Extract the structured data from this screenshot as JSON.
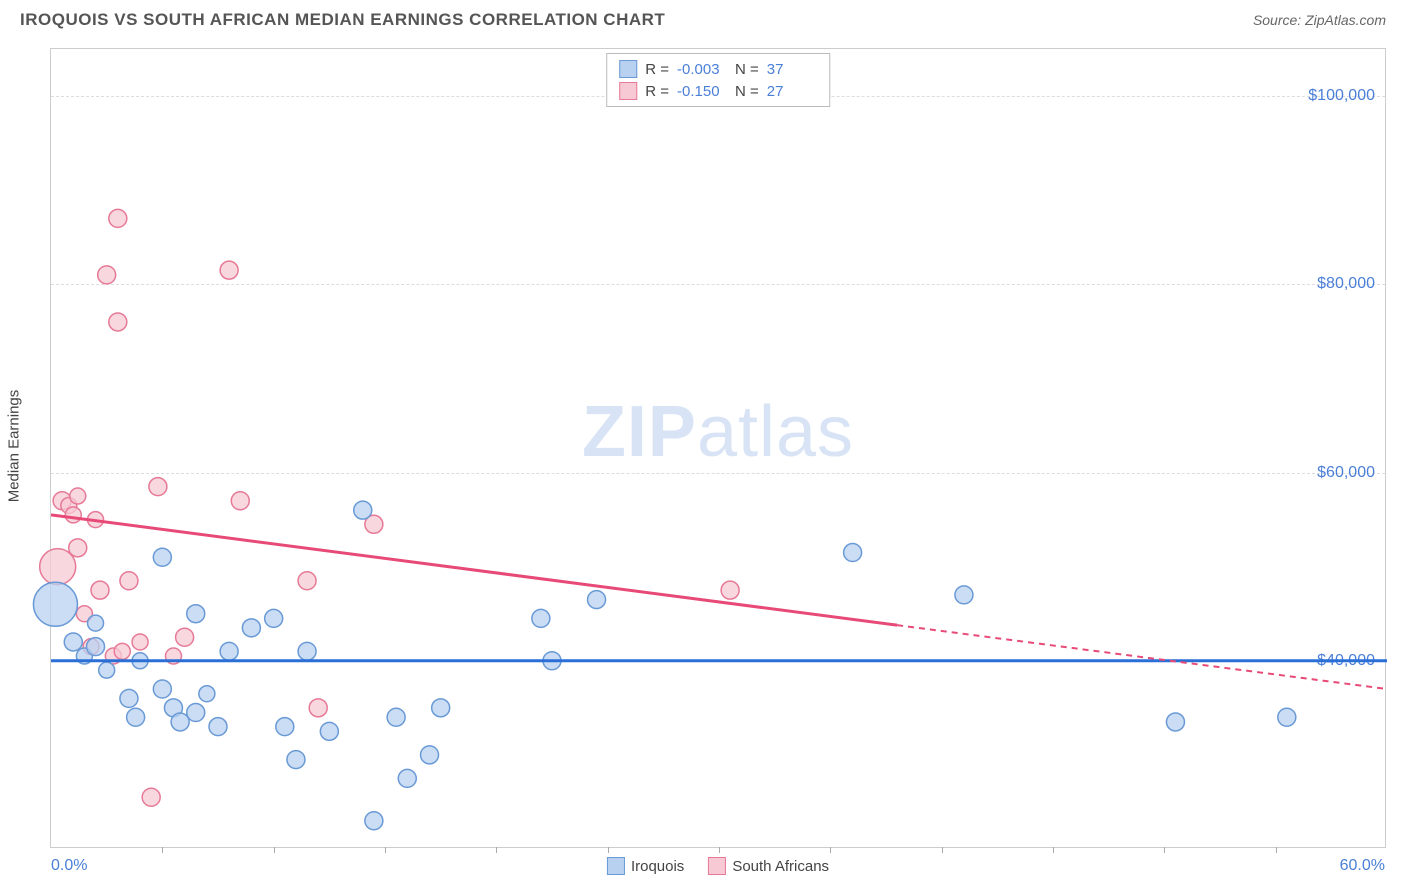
{
  "header": {
    "title": "IROQUOIS VS SOUTH AFRICAN MEDIAN EARNINGS CORRELATION CHART",
    "source": "Source: ZipAtlas.com"
  },
  "watermark": {
    "zip": "ZIP",
    "atlas": "atlas"
  },
  "chart": {
    "type": "scatter",
    "background_color": "#ffffff",
    "grid_color": "#dddddd",
    "y_axis_label": "Median Earnings",
    "x_axis": {
      "min": 0,
      "max": 60,
      "min_label": "0.0%",
      "max_label": "60.0%",
      "tick_step": 5
    },
    "y_axis": {
      "min": 20000,
      "max": 105000,
      "ticks": [
        40000,
        60000,
        80000,
        100000
      ],
      "tick_labels": [
        "$40,000",
        "$60,000",
        "$80,000",
        "$100,000"
      ]
    },
    "series": [
      {
        "name": "Iroquois",
        "color_fill": "#b8d1f0",
        "color_stroke": "#6a9ad6",
        "trend_color": "#2a6fd6",
        "trend_y1": 40000,
        "trend_y2": 40000,
        "trend_x1": 0,
        "trend_x2": 60,
        "trend_solid_to_x": 60,
        "stats": {
          "R": "-0.003",
          "N": "37"
        },
        "points": [
          {
            "x": 0.2,
            "y": 46000,
            "r": 22
          },
          {
            "x": 1.0,
            "y": 42000,
            "r": 9
          },
          {
            "x": 1.5,
            "y": 40500,
            "r": 8
          },
          {
            "x": 2.0,
            "y": 44000,
            "r": 8
          },
          {
            "x": 2.0,
            "y": 41500,
            "r": 9
          },
          {
            "x": 2.5,
            "y": 39000,
            "r": 8
          },
          {
            "x": 3.5,
            "y": 36000,
            "r": 9
          },
          {
            "x": 3.8,
            "y": 34000,
            "r": 9
          },
          {
            "x": 4.0,
            "y": 40000,
            "r": 8
          },
          {
            "x": 5.0,
            "y": 51000,
            "r": 9
          },
          {
            "x": 5.0,
            "y": 37000,
            "r": 9
          },
          {
            "x": 5.5,
            "y": 35000,
            "r": 9
          },
          {
            "x": 5.8,
            "y": 33500,
            "r": 9
          },
          {
            "x": 6.5,
            "y": 45000,
            "r": 9
          },
          {
            "x": 6.5,
            "y": 34500,
            "r": 9
          },
          {
            "x": 7.0,
            "y": 36500,
            "r": 8
          },
          {
            "x": 7.5,
            "y": 33000,
            "r": 9
          },
          {
            "x": 8.0,
            "y": 41000,
            "r": 9
          },
          {
            "x": 9.0,
            "y": 43500,
            "r": 9
          },
          {
            "x": 10.0,
            "y": 44500,
            "r": 9
          },
          {
            "x": 10.5,
            "y": 33000,
            "r": 9
          },
          {
            "x": 11.0,
            "y": 29500,
            "r": 9
          },
          {
            "x": 11.5,
            "y": 41000,
            "r": 9
          },
          {
            "x": 12.5,
            "y": 32500,
            "r": 9
          },
          {
            "x": 14.0,
            "y": 56000,
            "r": 9
          },
          {
            "x": 14.5,
            "y": 23000,
            "r": 9
          },
          {
            "x": 15.5,
            "y": 34000,
            "r": 9
          },
          {
            "x": 16.0,
            "y": 27500,
            "r": 9
          },
          {
            "x": 17.0,
            "y": 30000,
            "r": 9
          },
          {
            "x": 17.5,
            "y": 35000,
            "r": 9
          },
          {
            "x": 22.0,
            "y": 44500,
            "r": 9
          },
          {
            "x": 22.5,
            "y": 40000,
            "r": 9
          },
          {
            "x": 24.5,
            "y": 46500,
            "r": 9
          },
          {
            "x": 36.0,
            "y": 51500,
            "r": 9
          },
          {
            "x": 41.0,
            "y": 47000,
            "r": 9
          },
          {
            "x": 50.5,
            "y": 33500,
            "r": 9
          },
          {
            "x": 55.5,
            "y": 34000,
            "r": 9
          }
        ]
      },
      {
        "name": "South Africans",
        "color_fill": "#f7c9d4",
        "color_stroke": "#e67a96",
        "trend_color": "#e84a77",
        "trend_y1": 55500,
        "trend_y2": 37000,
        "trend_x1": 0,
        "trend_x2": 60,
        "trend_solid_to_x": 38,
        "stats": {
          "R": "-0.150",
          "N": "27"
        },
        "points": [
          {
            "x": 0.3,
            "y": 50000,
            "r": 18
          },
          {
            "x": 0.5,
            "y": 57000,
            "r": 9
          },
          {
            "x": 0.8,
            "y": 56500,
            "r": 8
          },
          {
            "x": 1.0,
            "y": 55500,
            "r": 8
          },
          {
            "x": 1.2,
            "y": 57500,
            "r": 8
          },
          {
            "x": 1.2,
            "y": 52000,
            "r": 9
          },
          {
            "x": 1.5,
            "y": 45000,
            "r": 8
          },
          {
            "x": 1.8,
            "y": 41500,
            "r": 8
          },
          {
            "x": 2.0,
            "y": 55000,
            "r": 8
          },
          {
            "x": 2.2,
            "y": 47500,
            "r": 9
          },
          {
            "x": 2.5,
            "y": 81000,
            "r": 9
          },
          {
            "x": 2.8,
            "y": 40500,
            "r": 8
          },
          {
            "x": 3.0,
            "y": 87000,
            "r": 9
          },
          {
            "x": 3.0,
            "y": 76000,
            "r": 9
          },
          {
            "x": 3.2,
            "y": 41000,
            "r": 8
          },
          {
            "x": 3.5,
            "y": 48500,
            "r": 9
          },
          {
            "x": 4.0,
            "y": 42000,
            "r": 8
          },
          {
            "x": 4.8,
            "y": 58500,
            "r": 9
          },
          {
            "x": 4.5,
            "y": 25500,
            "r": 9
          },
          {
            "x": 5.5,
            "y": 40500,
            "r": 8
          },
          {
            "x": 6.0,
            "y": 42500,
            "r": 9
          },
          {
            "x": 8.0,
            "y": 81500,
            "r": 9
          },
          {
            "x": 8.5,
            "y": 57000,
            "r": 9
          },
          {
            "x": 11.5,
            "y": 48500,
            "r": 9
          },
          {
            "x": 12.0,
            "y": 35000,
            "r": 9
          },
          {
            "x": 14.5,
            "y": 54500,
            "r": 9
          },
          {
            "x": 30.5,
            "y": 47500,
            "r": 9
          }
        ]
      }
    ]
  }
}
